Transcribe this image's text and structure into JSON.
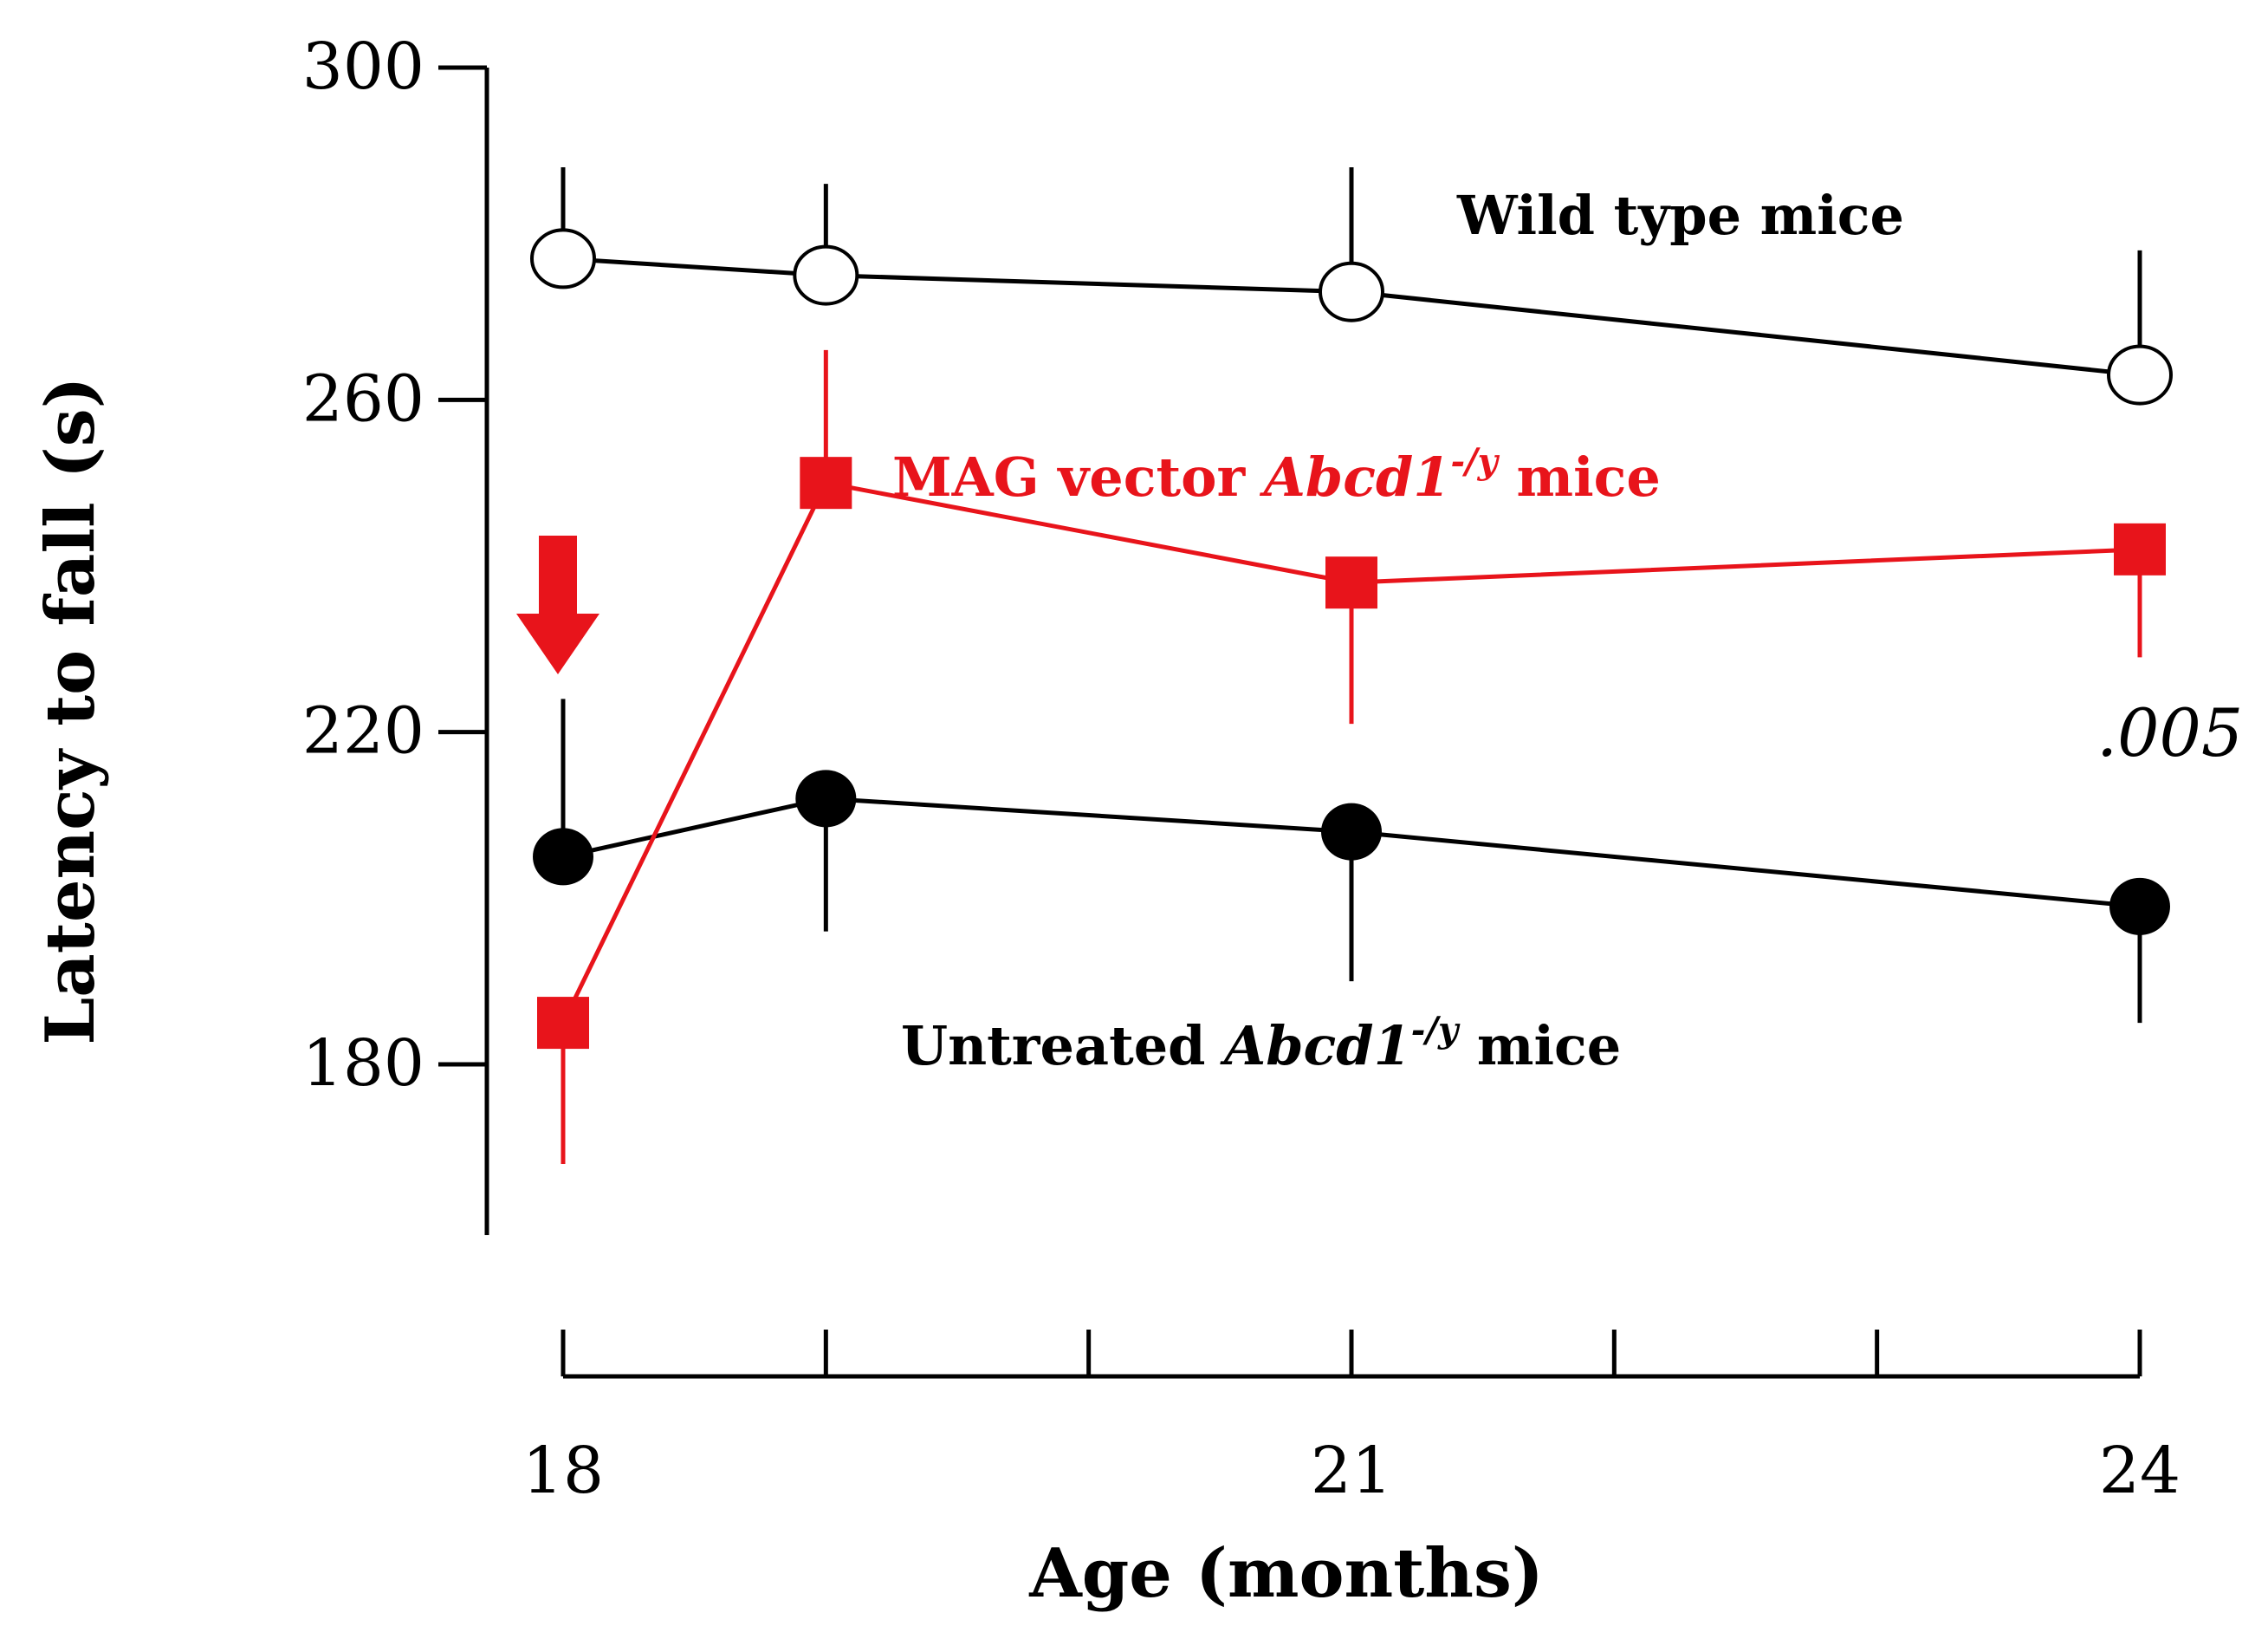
{
  "chart_data": {
    "type": "line",
    "xlabel": "Age (months)",
    "ylabel": "Latency to fall (s)",
    "xlim": [
      18,
      24
    ],
    "ylim": [
      160,
      300
    ],
    "x_ticks": [
      18,
      19,
      20,
      21,
      22,
      23,
      24
    ],
    "x_tick_labels": [
      "18",
      "",
      "",
      "21",
      "",
      "",
      "24"
    ],
    "y_ticks": [
      180,
      220,
      260,
      300
    ],
    "y_tick_labels": [
      "180",
      "220",
      "260",
      "300"
    ],
    "grid": false,
    "series": [
      {
        "name": "Wild type mice",
        "color": "#000000",
        "marker": "open-circle",
        "x": [
          18,
          19,
          21,
          24
        ],
        "y": [
          277,
          275,
          273,
          263
        ],
        "error": [
          11,
          11,
          15,
          15
        ],
        "error_direction": "up"
      },
      {
        "name_parts": [
          "MAG vector ",
          "Abcd1",
          "-/y",
          " mice"
        ],
        "color": "#e8141b",
        "marker": "square",
        "x": [
          18,
          19,
          21,
          24
        ],
        "y": [
          185,
          250,
          238,
          242
        ],
        "error": [
          17,
          16,
          17,
          13
        ],
        "error_direction": "mixed",
        "error_directions": [
          "down",
          "up",
          "down",
          "down"
        ]
      },
      {
        "name_parts": [
          "Untreated ",
          "Abcd1",
          "-/y",
          " mice"
        ],
        "color": "#000000",
        "marker": "filled-circle",
        "x": [
          18,
          19,
          21,
          24
        ],
        "y": [
          205,
          212,
          208,
          199
        ],
        "error": [
          19,
          16,
          18,
          14
        ],
        "error_direction": "mixed",
        "error_directions": [
          "up",
          "down",
          "down",
          "down"
        ]
      }
    ],
    "annotations": {
      "pvalue_text": ".005",
      "arrow_at_x": 18,
      "arrow_color": "#e8141b"
    }
  }
}
